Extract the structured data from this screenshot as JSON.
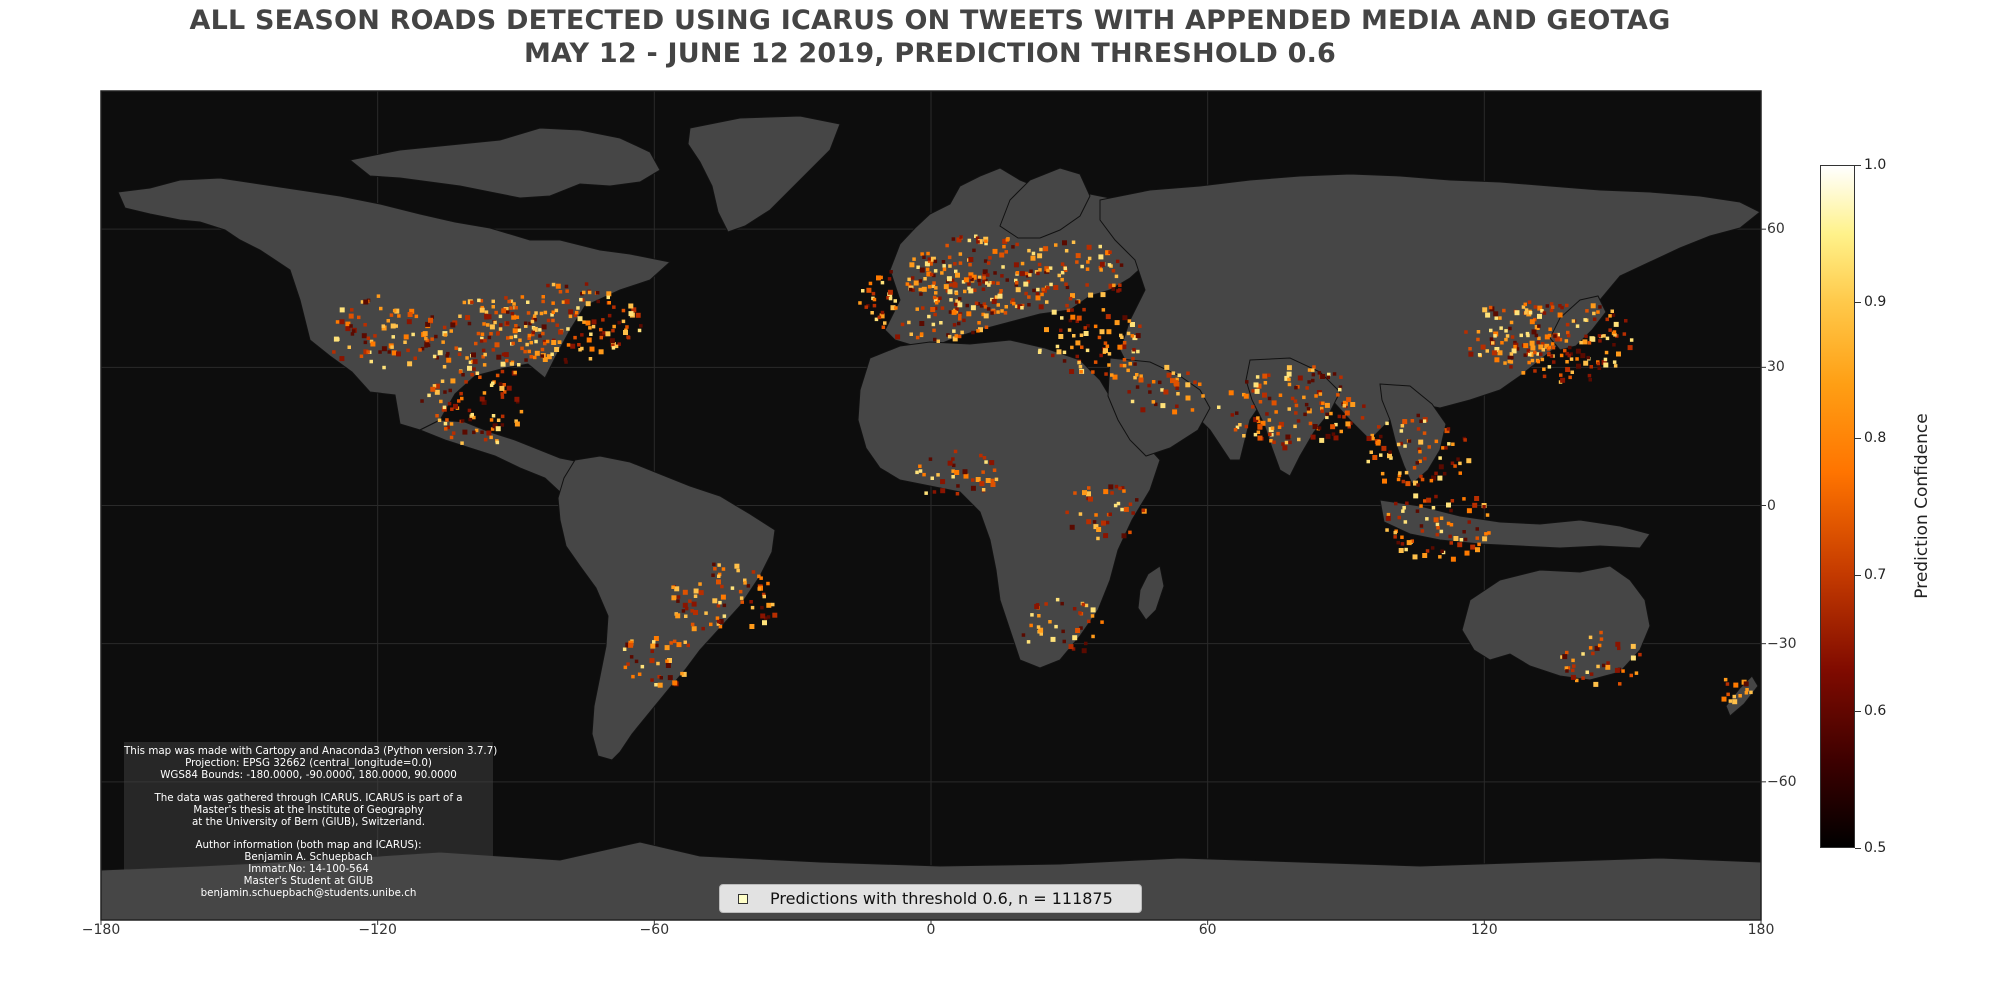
{
  "title": {
    "line1": "ALL SEASON ROADS DETECTED USING ICARUS ON TWEETS WITH APPENDED MEDIA AND GEOTAG",
    "line2": "MAY 12 - JUNE 12 2019, PREDICTION THRESHOLD 0.6"
  },
  "map": {
    "projection_text": "EPSG 32662 (Plate Carree)",
    "ocean_color": "#0d0d0d",
    "land_color": "#464646",
    "border_color": "#111111",
    "x_ticks": [
      "−180",
      "−120",
      "−60",
      "0",
      "60",
      "120",
      "180"
    ],
    "x_tick_values": [
      -180,
      -120,
      -60,
      0,
      60,
      120,
      180
    ],
    "y_ticks": [
      "60",
      "30",
      "0",
      "−30",
      "−60"
    ],
    "y_tick_values": [
      60,
      30,
      0,
      -30,
      -60
    ]
  },
  "info_box": {
    "lines": [
      "This map was made with Cartopy and Anaconda3 (Python version 3.7.7)",
      "Projection: EPSG 32662 (central_longitude=0.0)",
      "WGS84 Bounds: -180.0000, -90.0000, 180.0000, 90.0000",
      "",
      "The data was gathered through ICARUS. ICARUS is part of a",
      "Master's thesis at the Institute of Geography",
      "at the University of Bern (GIUB), Switzerland.",
      "",
      "Author information (both map and ICARUS):",
      "Benjamin A. Schuepbach",
      "Immatr.No: 14-100-564",
      "Master's Student at GIUB",
      "benjamin.schuepbach@students.unibe.ch"
    ]
  },
  "legend": {
    "label": "Predictions with threshold 0.6, n = 111875",
    "marker_color": "#ffffc8"
  },
  "colorbar": {
    "title": "Prediction Confidence",
    "ticks": [
      "1.0",
      "0.9",
      "0.8",
      "0.7",
      "0.6",
      "0.5"
    ],
    "tick_values": [
      1.0,
      0.9,
      0.8,
      0.7,
      0.6,
      0.5
    ],
    "range": [
      0.5,
      1.0
    ]
  },
  "chart_data": {
    "type": "scatter",
    "title": "ALL SEASON ROADS DETECTED USING ICARUS ON TWEETS WITH APPENDED MEDIA AND GEOTAG",
    "subtitle": "MAY 12 - JUNE 12 2019, PREDICTION THRESHOLD 0.6",
    "xlim": [
      -180,
      180
    ],
    "ylim": [
      -90,
      90
    ],
    "grid": true,
    "legend_position": "bottom-center",
    "n": 111875,
    "threshold": 0.6,
    "colorbar_label": "Prediction Confidence",
    "colorbar_range": [
      0.5,
      1.0
    ],
    "regions": [
      {
        "lon": -95,
        "lat": 37,
        "density": "very high"
      },
      {
        "lon": -79,
        "lat": 40,
        "density": "very high"
      },
      {
        "lon": -120,
        "lat": 38,
        "density": "high"
      },
      {
        "lon": -100,
        "lat": 21,
        "density": "high"
      },
      {
        "lon": -45,
        "lat": -20,
        "density": "high"
      },
      {
        "lon": -60,
        "lat": -33,
        "density": "medium"
      },
      {
        "lon": 0,
        "lat": 45,
        "density": "very high"
      },
      {
        "lon": 10,
        "lat": 50,
        "density": "very high"
      },
      {
        "lon": 30,
        "lat": 50,
        "density": "high"
      },
      {
        "lon": 35,
        "lat": 35,
        "density": "high"
      },
      {
        "lon": 50,
        "lat": 25,
        "density": "medium"
      },
      {
        "lon": 78,
        "lat": 22,
        "density": "very high"
      },
      {
        "lon": 105,
        "lat": 12,
        "density": "high"
      },
      {
        "lon": 110,
        "lat": -4,
        "density": "high"
      },
      {
        "lon": 137,
        "lat": 36,
        "density": "very high"
      },
      {
        "lon": 127,
        "lat": 37,
        "density": "high"
      },
      {
        "lon": 5,
        "lat": 7,
        "density": "medium"
      },
      {
        "lon": 37,
        "lat": -1,
        "density": "medium"
      },
      {
        "lon": 28,
        "lat": -26,
        "density": "medium"
      },
      {
        "lon": 145,
        "lat": -33,
        "density": "medium"
      },
      {
        "lon": 174,
        "lat": -40,
        "density": "low"
      }
    ]
  }
}
